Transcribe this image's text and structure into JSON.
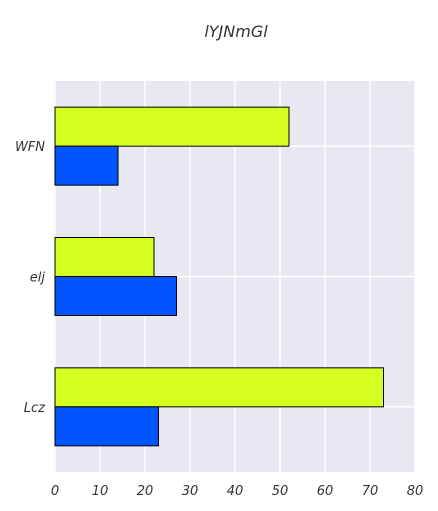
{
  "chart_data": {
    "type": "bar",
    "orientation": "horizontal",
    "title": "lYJNmGl",
    "xlabel": "",
    "ylabel": "",
    "categories": [
      "WFN",
      "elj",
      "Lcz"
    ],
    "series": [
      {
        "values": [
          52,
          22,
          73
        ],
        "color": "#d4ff1f"
      },
      {
        "values": [
          14,
          27,
          23
        ],
        "color": "#0055ff"
      }
    ],
    "xlim": [
      0,
      80
    ],
    "xticks": [
      "0",
      "10",
      "20",
      "30",
      "40",
      "50",
      "60",
      "70",
      "80"
    ],
    "grid": true,
    "background": "#e8e8f2",
    "grid_color": "#ffffff"
  }
}
